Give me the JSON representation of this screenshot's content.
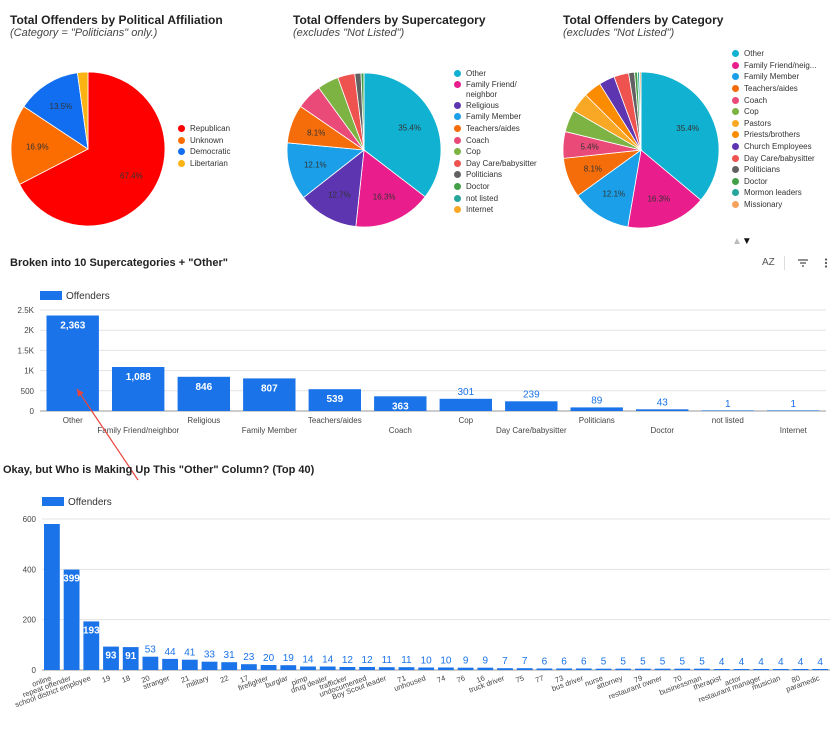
{
  "pie_charts": [
    {
      "title": "Total Offenders by Political Affiliation",
      "subtitle": "(Category = \"Politicians\" only.)"
    },
    {
      "title": "Total Offenders by Supercategory",
      "subtitle": "(excludes \"Not Listed\")"
    },
    {
      "title": "Total Offenders by Category",
      "subtitle": "(excludes \"Not Listed\")"
    }
  ],
  "bar_sections": {
    "supercategories_title": "Broken into 10 Supercategories + \"Other\"",
    "top40_title": "Okay, but Who is Making Up This \"Other\" Column? (Top 40)",
    "sort_label": "AZ",
    "filter_icon": "filter-icon",
    "more_icon": "more-vert-icon",
    "pager_icons": [
      "up-arrow-icon",
      "down-arrow-icon"
    ]
  },
  "colors": {
    "bar": "#1a73e8",
    "label": "#1a73e8",
    "arrow": "#e8453c"
  },
  "chart_data": [
    {
      "type": "pie",
      "title": "Total Offenders by Political Affiliation",
      "subtitle": "(Category = \"Politicians\" only.)",
      "slices": [
        {
          "label": "Republican",
          "value": 67.4,
          "display": "67.4%",
          "color": "#fe0000"
        },
        {
          "label": "Unknown",
          "value": 16.9,
          "display": "16.9%",
          "color": "#fb6d01"
        },
        {
          "label": "Democratic",
          "value": 13.5,
          "display": "13.5%",
          "color": "#126ef0"
        },
        {
          "label": "Libertarian",
          "value": 2.2,
          "display": "",
          "color": "#fbb313"
        }
      ]
    },
    {
      "type": "pie",
      "title": "Total Offenders by Supercategory",
      "subtitle": "(excludes \"Not Listed\")",
      "slices": [
        {
          "label": "Other",
          "value": 35.4,
          "display": "35.4%",
          "color": "#11b1d1"
        },
        {
          "label": "Family Friend/ neighbor",
          "value": 16.3,
          "display": "16.3%",
          "color": "#e91e8c"
        },
        {
          "label": "Religious",
          "value": 12.7,
          "display": "12.7%",
          "color": "#5e35b1"
        },
        {
          "label": "Family Member",
          "value": 12.1,
          "display": "12.1%",
          "color": "#1a9fe8"
        },
        {
          "label": "Teachers/aides",
          "value": 8.1,
          "display": "8.1%",
          "color": "#f46d0a"
        },
        {
          "label": "Coach",
          "value": 5.4,
          "display": "",
          "color": "#ea4a78"
        },
        {
          "label": "Cop",
          "value": 4.5,
          "display": "",
          "color": "#7cb342"
        },
        {
          "label": "Day Care/babysitter",
          "value": 3.6,
          "display": "",
          "color": "#ef5350"
        },
        {
          "label": "Politicians",
          "value": 1.3,
          "display": "",
          "color": "#616161"
        },
        {
          "label": "Doctor",
          "value": 0.6,
          "display": "",
          "color": "#43a047"
        },
        {
          "label": "not listed",
          "value": 0.01,
          "display": "",
          "color": "#26a69a"
        },
        {
          "label": "Internet",
          "value": 0.01,
          "display": "",
          "color": "#f9a825"
        }
      ]
    },
    {
      "type": "pie",
      "title": "Total Offenders by Category",
      "subtitle": "(excludes \"Not Listed\")",
      "slices": [
        {
          "label": "Other",
          "value": 35.4,
          "display": "35.4%",
          "color": "#11b1d1"
        },
        {
          "label": "Family Friend/neig...",
          "value": 16.3,
          "display": "16.3%",
          "color": "#e91e8c"
        },
        {
          "label": "Family Member",
          "value": 12.1,
          "display": "12.1%",
          "color": "#1a9fe8"
        },
        {
          "label": "Teachers/aides",
          "value": 8.1,
          "display": "8.1%",
          "color": "#f46d0a"
        },
        {
          "label": "Coach",
          "value": 5.4,
          "display": "5.4%",
          "color": "#ea4a78"
        },
        {
          "label": "Cop",
          "value": 4.5,
          "display": "",
          "color": "#7cb342"
        },
        {
          "label": "Pastors",
          "value": 4.0,
          "display": "",
          "color": "#f9a825"
        },
        {
          "label": "Priests/brothers",
          "value": 3.6,
          "display": "",
          "color": "#fb8c00"
        },
        {
          "label": "Church Employees",
          "value": 3.2,
          "display": "",
          "color": "#5e35b1"
        },
        {
          "label": "Day Care/babysitter",
          "value": 3.0,
          "display": "",
          "color": "#ef5350"
        },
        {
          "label": "Politicians",
          "value": 1.2,
          "display": "",
          "color": "#616161"
        },
        {
          "label": "Doctor",
          "value": 0.6,
          "display": "",
          "color": "#43a047"
        },
        {
          "label": "Mormon leaders",
          "value": 0.4,
          "display": "",
          "color": "#26a69a"
        },
        {
          "label": "Missionary",
          "value": 0.3,
          "display": "",
          "color": "#f5a25d"
        }
      ]
    },
    {
      "type": "bar",
      "title": "Broken into 10 Supercategories + \"Other\"",
      "legend": "Offenders",
      "categories": [
        "Other",
        "Family Friend/neighbor",
        "Religious",
        "Family Member",
        "Teachers/aides",
        "Coach",
        "Cop",
        "Day Care/babysitter",
        "Politicians",
        "Doctor",
        "not listed",
        "Internet"
      ],
      "values": [
        2363,
        1088,
        846,
        807,
        539,
        363,
        301,
        239,
        89,
        43,
        1,
        1
      ],
      "labels": [
        "2,363",
        "1,088",
        "846",
        "807",
        "539",
        "363",
        "301",
        "239",
        "89",
        "43",
        "1",
        "1"
      ],
      "yticks": [
        "0",
        "500",
        "1K",
        "1.5K",
        "2K",
        "2.5K"
      ],
      "ylim": [
        0,
        2500
      ]
    },
    {
      "type": "bar",
      "title": "Okay, but Who is Making Up This \"Other\" Column? (Top 40)",
      "legend": "Offenders",
      "categories": [
        "online",
        "repeat offender",
        "school district employee",
        "19",
        "18",
        "20",
        "stranger",
        "21",
        "military",
        "22",
        "17",
        "firefighter",
        "burglar",
        "pimp",
        "drug dealer",
        "trafficker",
        "undocumented",
        "Boy Scout leader",
        "71",
        "unhoused",
        "74",
        "76",
        "16",
        "truck driver",
        "75",
        "77",
        "73",
        "bus driver",
        "nurse",
        "attorney",
        "79",
        "restaurant owner",
        "70",
        "businessman",
        "therapist",
        "actor",
        "restaurant manager",
        "musician",
        "80",
        "paramedic"
      ],
      "values": [
        580,
        399,
        193,
        93,
        91,
        53,
        44,
        41,
        33,
        31,
        23,
        20,
        19,
        14,
        14,
        12,
        12,
        11,
        11,
        10,
        10,
        9,
        9,
        7,
        7,
        6,
        6,
        6,
        5,
        5,
        5,
        5,
        5,
        5,
        4,
        4,
        4,
        4,
        4,
        4
      ],
      "labels": [
        "",
        "399",
        "193",
        "93",
        "91",
        "53",
        "44",
        "41",
        "33",
        "31",
        "23",
        "20",
        "19",
        "14",
        "14",
        "12",
        "12",
        "11",
        "11",
        "10",
        "10",
        "9",
        "9",
        "7",
        "7",
        "6",
        "6",
        "6",
        "5",
        "5",
        "5",
        "5",
        "5",
        "5",
        "4",
        "4",
        "4",
        "4",
        "4",
        "4"
      ],
      "yticks": [
        "0",
        "200",
        "400",
        "600"
      ],
      "ylim": [
        0,
        600
      ]
    }
  ]
}
